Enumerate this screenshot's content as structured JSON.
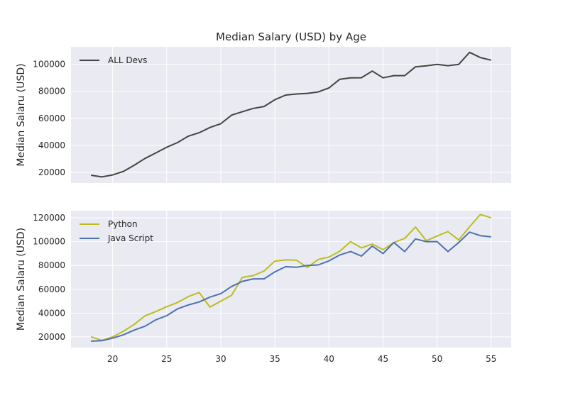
{
  "chart_data": [
    {
      "type": "line",
      "title": "Median Salary (USD) by Age",
      "xlabel": "",
      "ylabel": "Median Salaru (USD)",
      "x": [
        18,
        19,
        20,
        21,
        22,
        23,
        24,
        25,
        26,
        27,
        28,
        29,
        30,
        31,
        32,
        33,
        34,
        35,
        36,
        37,
        38,
        39,
        40,
        41,
        42,
        43,
        44,
        45,
        46,
        47,
        48,
        49,
        50,
        51,
        52,
        53,
        54,
        55
      ],
      "xlim": [
        16.15,
        56.85
      ],
      "ylim": [
        12000,
        113000
      ],
      "xticks": [
        "20",
        "25",
        "30",
        "35",
        "40",
        "45",
        "50",
        "55"
      ],
      "yticks": [
        "20000",
        "40000",
        "60000",
        "80000",
        "100000"
      ],
      "grid": true,
      "legend_position": "top-left",
      "series": [
        {
          "name": "ALL Devs",
          "color": "#444444",
          "values": [
            17784,
            16500,
            18012,
            20628,
            25206,
            30252,
            34368,
            38496,
            42000,
            46752,
            49320,
            53200,
            56000,
            62316,
            64928,
            67317,
            68748,
            73752,
            77232,
            78000,
            78508,
            79536,
            82488,
            88935,
            90000,
            90056,
            95000,
            90000,
            91633,
            91660,
            98150,
            98964,
            100000,
            98988,
            100000,
            108923,
            105000,
            103117
          ]
        }
      ]
    },
    {
      "type": "line",
      "title": "",
      "xlabel": "",
      "ylabel": "Median Salaru (USD)",
      "x": [
        18,
        19,
        20,
        21,
        22,
        23,
        24,
        25,
        26,
        27,
        28,
        29,
        30,
        31,
        32,
        33,
        34,
        35,
        36,
        37,
        38,
        39,
        40,
        41,
        42,
        43,
        44,
        45,
        46,
        47,
        48,
        49,
        50,
        51,
        52,
        53,
        54,
        55
      ],
      "xlim": [
        16.15,
        56.85
      ],
      "ylim": [
        11000,
        126000
      ],
      "xticks": [
        "20",
        "25",
        "30",
        "35",
        "40",
        "45",
        "50",
        "55"
      ],
      "yticks": [
        "20000",
        "40000",
        "60000",
        "80000",
        "100000",
        "120000"
      ],
      "grid": true,
      "legend_position": "top-left",
      "series": [
        {
          "name": "Python",
          "color": "#bcbd22",
          "values": [
            20046,
            17100,
            20000,
            24744,
            30500,
            37732,
            41247,
            45372,
            48876,
            53850,
            57287,
            45000,
            50000,
            55000,
            70000,
            71496,
            75370,
            83640,
            84666,
            84392,
            78254,
            85000,
            87038,
            91991,
            100000,
            94796,
            97962,
            93302,
            99240,
            102736,
            112285,
            100771,
            104708,
            108423,
            101407,
            112542,
            122870,
            120000
          ]
        },
        {
          "name": "Java Script",
          "color": "#4c72b0",
          "values": [
            16446,
            16791,
            18942,
            21780,
            25704,
            29000,
            34372,
            37810,
            43515,
            46823,
            49293,
            53437,
            56373,
            62375,
            66674,
            68745,
            68746,
            74583,
            79000,
            78508,
            79996,
            80403,
            83820,
            88833,
            91660,
            87892,
            96243,
            90000,
            99313,
            91660,
            102264,
            100000,
            100000,
            91660,
            99240,
            108000,
            105000,
            104000
          ]
        }
      ]
    }
  ]
}
